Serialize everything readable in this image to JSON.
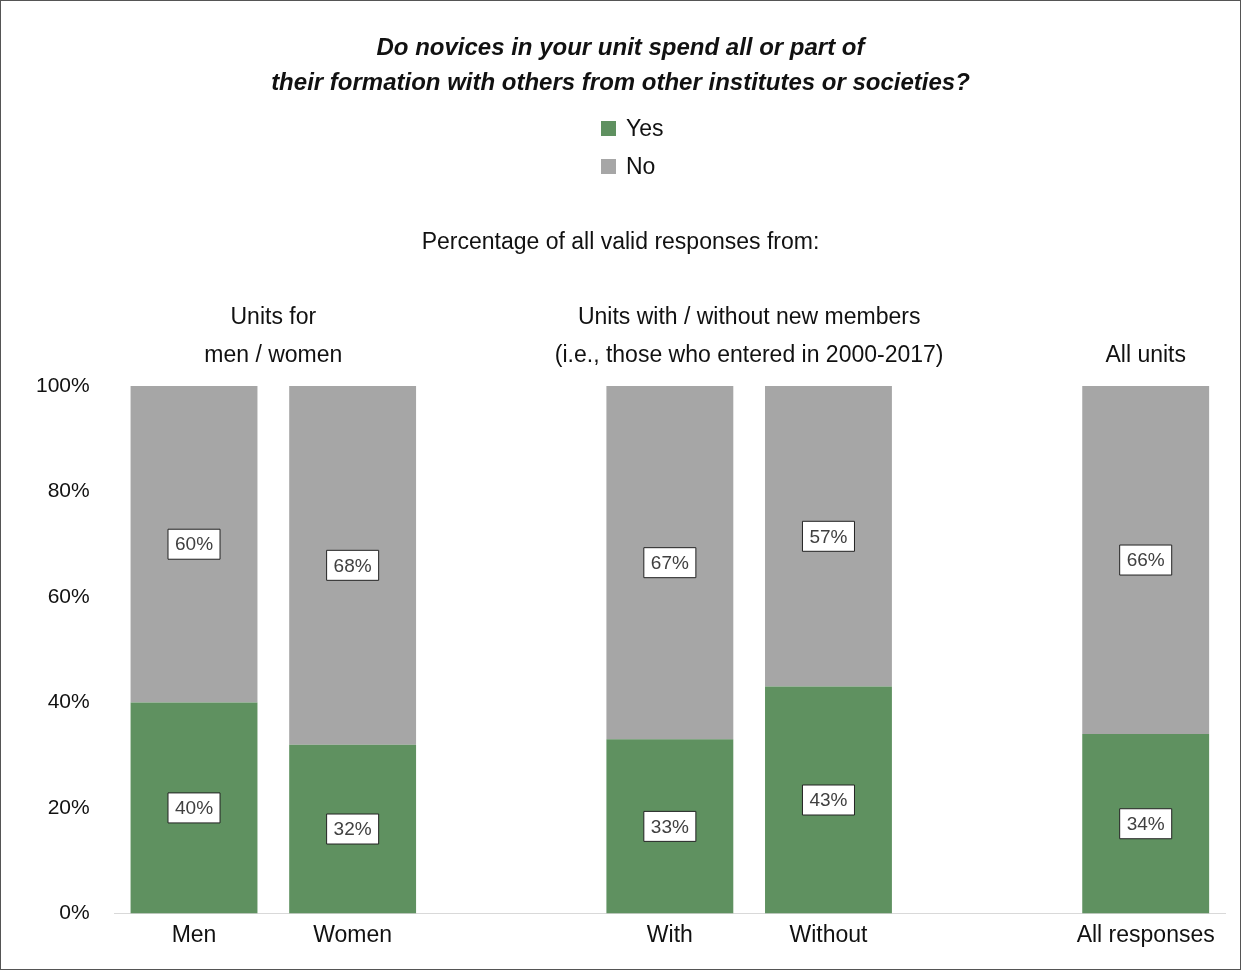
{
  "chart_data": {
    "type": "bar",
    "stacked": true,
    "title": "Do novices in your unit spend all or part of\ntheir formation with others from other institutes or societies?",
    "categories": [
      "Men",
      "Women",
      null,
      "With",
      "Without",
      null,
      "All responses"
    ],
    "series": [
      {
        "name": "Yes",
        "color": "#5f9160",
        "values": [
          40,
          32,
          null,
          33,
          43,
          null,
          34
        ],
        "value_labels": [
          "40%",
          "32%",
          null,
          "33%",
          "43%",
          null,
          "34%"
        ]
      },
      {
        "name": "No",
        "color": "#a6a6a6",
        "values": [
          60,
          68,
          null,
          67,
          57,
          null,
          66
        ],
        "value_labels": [
          "60%",
          "68%",
          null,
          "67%",
          "57%",
          null,
          "66%"
        ]
      }
    ],
    "ylim": [
      0,
      100
    ],
    "yticks": [
      {
        "value": 0,
        "label": "0%"
      },
      {
        "value": 20,
        "label": "20%"
      },
      {
        "value": 40,
        "label": "40%"
      },
      {
        "value": 60,
        "label": "60%"
      },
      {
        "value": 80,
        "label": "80%"
      },
      {
        "value": 100,
        "label": "100%"
      }
    ],
    "grid": false,
    "legend": "top",
    "annotations": [
      "Percentage of all valid responses from:",
      "Units for\nmen / women",
      "Units with / without new members\n(i.e., those who entered in 2000-2017)",
      "All units"
    ]
  }
}
